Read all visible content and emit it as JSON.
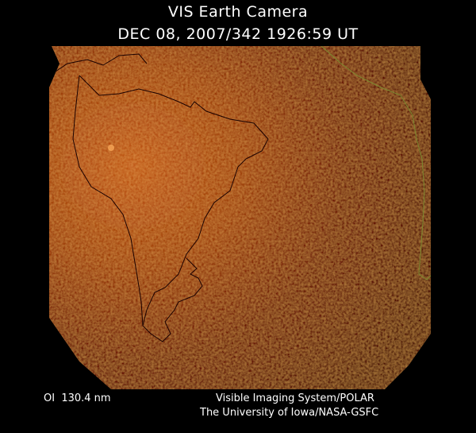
{
  "header": {
    "title": "VIS Earth Camera",
    "timestamp": "DEC 08, 2007/342 1926:59 UT"
  },
  "footer": {
    "wavelength": "OI  130.4 nm",
    "instrument": "Visible Imaging System/POLAR",
    "institution": "The University of Iowa/NASA-GSFC"
  }
}
